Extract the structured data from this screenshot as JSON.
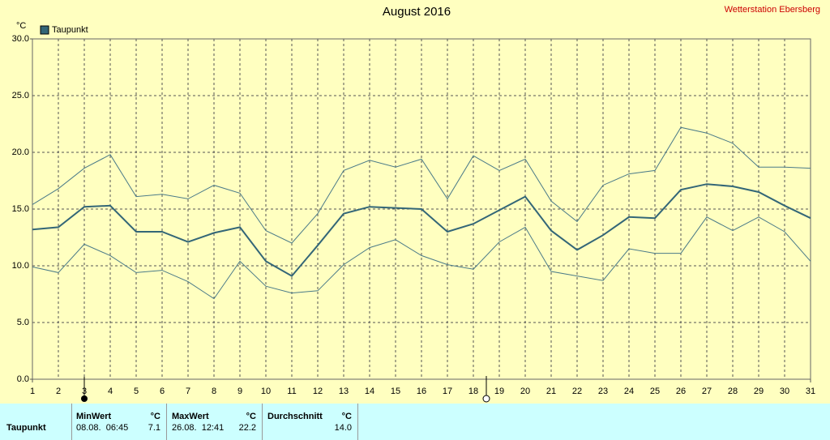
{
  "chart_data": {
    "type": "line",
    "title": "August 2016",
    "subtitle": "Wetterstation Ebersberg",
    "y_unit": "°C",
    "x": [
      1,
      2,
      3,
      4,
      5,
      6,
      7,
      8,
      9,
      10,
      11,
      12,
      13,
      14,
      15,
      16,
      17,
      18,
      19,
      20,
      21,
      22,
      23,
      24,
      25,
      26,
      27,
      28,
      29,
      30,
      31
    ],
    "xlim": [
      1,
      31
    ],
    "xticks": [
      1,
      2,
      3,
      4,
      5,
      6,
      7,
      8,
      9,
      10,
      11,
      12,
      13,
      14,
      15,
      16,
      17,
      18,
      19,
      20,
      21,
      22,
      23,
      24,
      25,
      26,
      27,
      28,
      29,
      30,
      31
    ],
    "ylim": [
      0,
      30
    ],
    "yticks": [
      {
        "value": 0,
        "label": "0.0"
      },
      {
        "value": 5,
        "label": "5.0"
      },
      {
        "value": 10,
        "label": "10.0"
      },
      {
        "value": 15,
        "label": "15.0"
      },
      {
        "value": 20,
        "label": "20.0"
      },
      {
        "value": 25,
        "label": "25.0"
      },
      {
        "value": 30,
        "label": "30.0"
      }
    ],
    "grid": true,
    "series": [
      {
        "name": "Taupunkt",
        "color": "#336677",
        "values": [
          13.2,
          13.4,
          15.2,
          15.3,
          13.0,
          13.0,
          12.1,
          12.9,
          13.4,
          10.4,
          9.1,
          11.8,
          14.6,
          15.2,
          15.1,
          15.0,
          13.0,
          13.7,
          14.9,
          16.1,
          13.1,
          11.4,
          12.7,
          14.3,
          14.2,
          16.7,
          17.2,
          17.0,
          16.5,
          15.3,
          14.2
        ]
      },
      {
        "color": "#4a7a88",
        "values": [
          15.4,
          16.8,
          18.6,
          19.8,
          16.1,
          16.3,
          15.9,
          17.1,
          16.4,
          13.1,
          12.0,
          14.6,
          18.4,
          19.3,
          18.7,
          19.4,
          15.9,
          19.7,
          18.4,
          19.4,
          15.7,
          13.9,
          17.1,
          18.1,
          18.4,
          22.2,
          21.7,
          20.8,
          18.7,
          18.7,
          18.6
        ]
      },
      {
        "color": "#4a7a88",
        "values": [
          9.9,
          9.4,
          11.9,
          10.9,
          9.4,
          9.6,
          8.6,
          7.1,
          10.4,
          8.2,
          7.6,
          7.8,
          10.1,
          11.6,
          12.3,
          10.9,
          10.1,
          9.7,
          12.1,
          13.4,
          9.5,
          9.1,
          8.7,
          11.5,
          11.1,
          11.1,
          14.3,
          13.1,
          14.3,
          13.0,
          10.4
        ]
      }
    ]
  },
  "table": {
    "headers": [
      "MinWert",
      "°C",
      "MaxWert",
      "°C",
      "Durchschnitt",
      "°C"
    ],
    "rows": [
      [
        "Taupunkt",
        "08.08.  06:45",
        "7.1",
        "26.08.  12:41",
        "22.2",
        "14.0"
      ]
    ]
  }
}
